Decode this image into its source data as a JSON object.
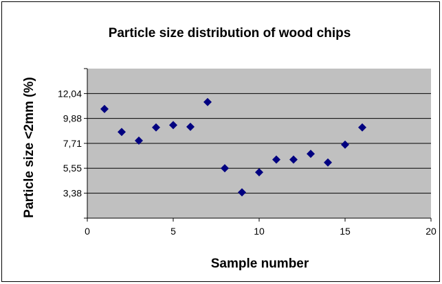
{
  "chart_data": {
    "type": "scatter",
    "title": "Particle size distribution of wood chips",
    "xlabel": "Sample number",
    "ylabel": "Particle size <2mm (%)",
    "xlim": [
      0,
      20
    ],
    "ylim": [
      1.21,
      14.21
    ],
    "xticks": [
      0,
      5,
      10,
      15,
      20
    ],
    "xtick_labels": [
      "0",
      "5",
      "10",
      "15",
      "20"
    ],
    "yticks": [
      3.38,
      5.55,
      7.71,
      9.88,
      12.04
    ],
    "ytick_labels": [
      "3,38",
      "5,55",
      "7,71",
      "9,88",
      "12,04"
    ],
    "grid": "horizontal",
    "plot_background": "#c0c0c0",
    "marker_color": "#000080",
    "marker": "diamond",
    "x": [
      1,
      2,
      3,
      4,
      5,
      6,
      7,
      8,
      9,
      10,
      11,
      12,
      13,
      14,
      15,
      16
    ],
    "y": [
      10.7,
      8.7,
      7.95,
      9.1,
      9.3,
      9.15,
      11.3,
      5.55,
      3.45,
      5.2,
      6.3,
      6.3,
      6.8,
      6.05,
      7.6,
      9.1
    ]
  }
}
